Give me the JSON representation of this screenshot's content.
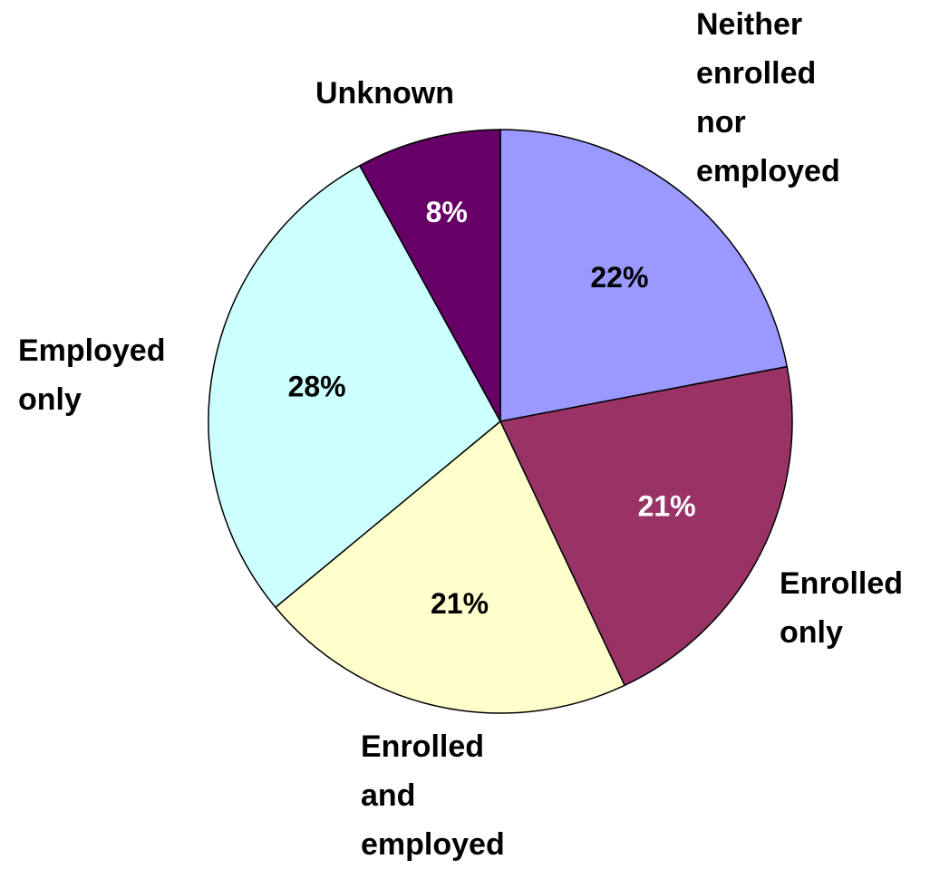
{
  "chart_data": {
    "type": "pie",
    "title": "",
    "slices": [
      {
        "label_lines": [
          "Neither",
          "enrolled",
          "nor",
          "employed"
        ],
        "value": 22,
        "value_label": "22%",
        "color": "#9999FF",
        "text_color": "#000000"
      },
      {
        "label_lines": [
          "Enrolled",
          "only"
        ],
        "value": 21,
        "value_label": "21%",
        "color": "#993366",
        "text_color": "#FFFFFF"
      },
      {
        "label_lines": [
          "Enrolled",
          "and",
          "employed"
        ],
        "value": 21,
        "value_label": "21%",
        "color": "#FFFFCC",
        "text_color": "#000000"
      },
      {
        "label_lines": [
          "Employed",
          "only"
        ],
        "value": 28,
        "value_label": "28%",
        "color": "#CCFFFF",
        "text_color": "#000000"
      },
      {
        "label_lines": [
          "Unknown"
        ],
        "value": 8,
        "value_label": "8%",
        "color": "#660066",
        "text_color": "#FFFFFF"
      }
    ]
  }
}
